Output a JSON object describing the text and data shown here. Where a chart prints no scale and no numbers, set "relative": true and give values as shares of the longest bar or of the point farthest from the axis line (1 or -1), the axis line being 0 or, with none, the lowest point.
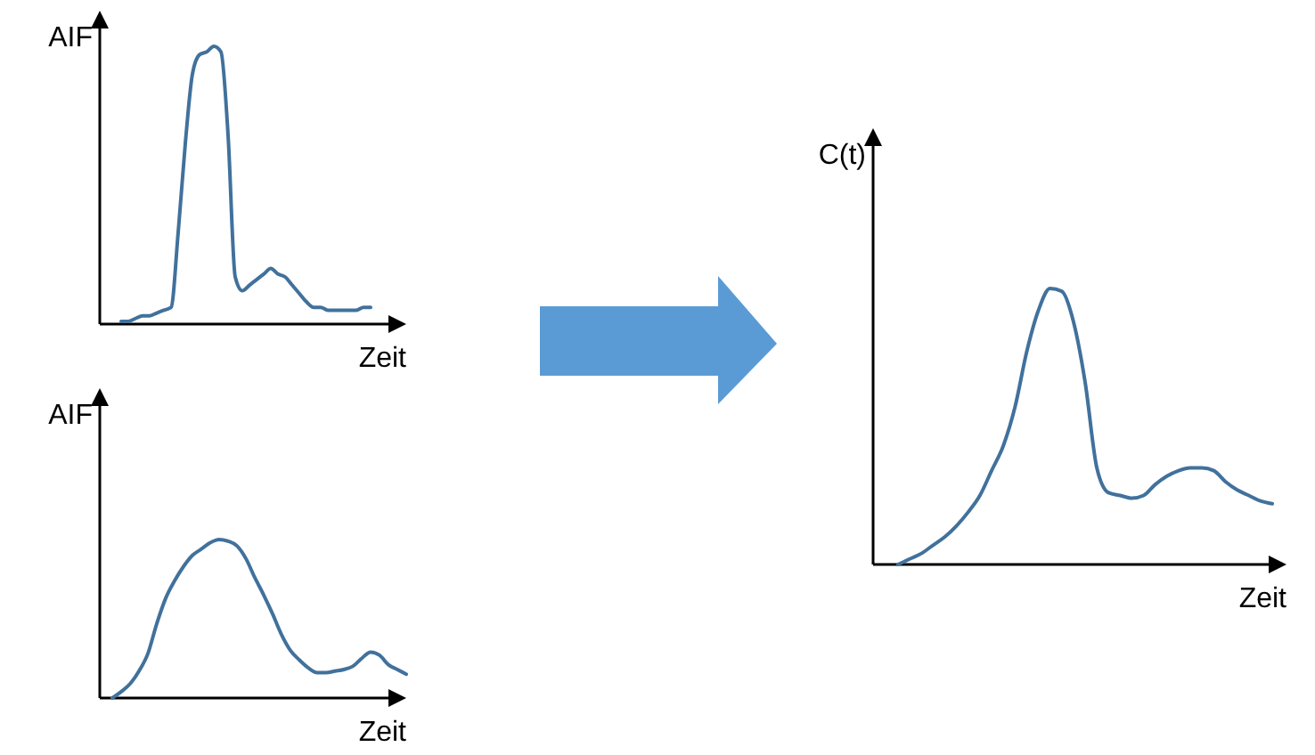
{
  "chart_data": [
    {
      "type": "line",
      "ylabel": "AIF",
      "xlabel": "Zeit",
      "relative": true,
      "color": "#41719c",
      "categories": [
        null,
        null,
        null,
        null,
        null,
        null,
        null,
        null,
        null,
        null,
        null,
        null,
        null,
        null,
        null,
        null,
        null,
        null,
        null,
        null,
        null,
        null,
        null,
        null,
        null,
        null,
        null,
        null,
        null,
        null,
        null,
        null,
        null,
        null,
        null,
        null
      ],
      "values": [
        0.01,
        0.01,
        0.02,
        0.03,
        0.03,
        0.04,
        0.05,
        0.06,
        0.33,
        0.65,
        0.9,
        0.97,
        0.98,
        1.0,
        0.98,
        0.68,
        0.17,
        0.12,
        0.14,
        0.16,
        0.18,
        0.2,
        0.18,
        0.17,
        0.14,
        0.11,
        0.08,
        0.06,
        0.06,
        0.05,
        0.05,
        0.05,
        0.05,
        0.05,
        0.06,
        0.06
      ]
    },
    {
      "type": "line",
      "ylabel": "AIF",
      "xlabel": "Zeit",
      "relative": true,
      "color": "#41719c",
      "categories": [
        null,
        null,
        null,
        null,
        null,
        null,
        null,
        null,
        null,
        null,
        null,
        null,
        null,
        null,
        null,
        null,
        null,
        null,
        null,
        null,
        null,
        null,
        null,
        null,
        null,
        null,
        null,
        null,
        null,
        null,
        null,
        null,
        null,
        null
      ],
      "values": [
        0,
        0.04,
        0.09,
        0.17,
        0.28,
        0.47,
        0.63,
        0.74,
        0.83,
        0.9,
        0.94,
        0.98,
        1.0,
        0.99,
        0.96,
        0.88,
        0.76,
        0.65,
        0.53,
        0.4,
        0.3,
        0.24,
        0.19,
        0.16,
        0.16,
        0.17,
        0.18,
        0.2,
        0.25,
        0.29,
        0.27,
        0.21,
        0.18,
        0.15
      ]
    },
    {
      "type": "line",
      "ylabel": "C(t)",
      "xlabel": "Zeit",
      "relative": true,
      "color": "#41719c",
      "categories": [
        null,
        null,
        null,
        null,
        null,
        null,
        null,
        null,
        null,
        null,
        null,
        null,
        null,
        null,
        null,
        null,
        null,
        null,
        null,
        null,
        null,
        null,
        null,
        null,
        null,
        null,
        null,
        null,
        null,
        null,
        null,
        null,
        null
      ],
      "values": [
        0,
        0.02,
        0.04,
        0.07,
        0.1,
        0.14,
        0.19,
        0.25,
        0.34,
        0.43,
        0.57,
        0.77,
        0.92,
        1.0,
        0.99,
        0.88,
        0.66,
        0.35,
        0.26,
        0.25,
        0.24,
        0.25,
        0.29,
        0.32,
        0.34,
        0.35,
        0.35,
        0.34,
        0.3,
        0.27,
        0.25,
        0.23,
        0.22
      ]
    }
  ]
}
